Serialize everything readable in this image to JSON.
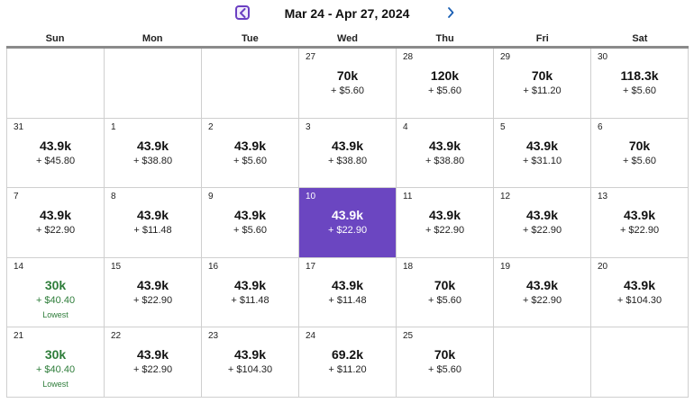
{
  "nav": {
    "title": "Mar 24 - Apr 27, 2024",
    "prev_icon": "chevron-left-icon",
    "next_icon": "chevron-right-icon"
  },
  "colors": {
    "accent": "#6b46c1",
    "lowest": "#2e7d3a"
  },
  "weekdays": [
    "Sun",
    "Mon",
    "Tue",
    "Wed",
    "Thu",
    "Fri",
    "Sat"
  ],
  "weeks": [
    [
      null,
      null,
      null,
      {
        "day": "27",
        "points": "70k",
        "taxes": "+ $5.60"
      },
      {
        "day": "28",
        "points": "120k",
        "taxes": "+ $5.60"
      },
      {
        "day": "29",
        "points": "70k",
        "taxes": "+ $11.20"
      },
      {
        "day": "30",
        "points": "118.3k",
        "taxes": "+ $5.60"
      }
    ],
    [
      {
        "day": "31",
        "points": "43.9k",
        "taxes": "+ $45.80"
      },
      {
        "day": "1",
        "points": "43.9k",
        "taxes": "+ $38.80"
      },
      {
        "day": "2",
        "points": "43.9k",
        "taxes": "+ $5.60"
      },
      {
        "day": "3",
        "points": "43.9k",
        "taxes": "+ $38.80"
      },
      {
        "day": "4",
        "points": "43.9k",
        "taxes": "+ $38.80"
      },
      {
        "day": "5",
        "points": "43.9k",
        "taxes": "+ $31.10"
      },
      {
        "day": "6",
        "points": "70k",
        "taxes": "+ $5.60"
      }
    ],
    [
      {
        "day": "7",
        "points": "43.9k",
        "taxes": "+ $22.90"
      },
      {
        "day": "8",
        "points": "43.9k",
        "taxes": "+ $11.48"
      },
      {
        "day": "9",
        "points": "43.9k",
        "taxes": "+ $5.60"
      },
      {
        "day": "10",
        "points": "43.9k",
        "taxes": "+ $22.90",
        "selected": true
      },
      {
        "day": "11",
        "points": "43.9k",
        "taxes": "+ $22.90"
      },
      {
        "day": "12",
        "points": "43.9k",
        "taxes": "+ $22.90"
      },
      {
        "day": "13",
        "points": "43.9k",
        "taxes": "+ $22.90"
      }
    ],
    [
      {
        "day": "14",
        "points": "30k",
        "taxes": "+ $40.40",
        "flag": "Lowest"
      },
      {
        "day": "15",
        "points": "43.9k",
        "taxes": "+ $22.90"
      },
      {
        "day": "16",
        "points": "43.9k",
        "taxes": "+ $11.48"
      },
      {
        "day": "17",
        "points": "43.9k",
        "taxes": "+ $11.48"
      },
      {
        "day": "18",
        "points": "70k",
        "taxes": "+ $5.60"
      },
      {
        "day": "19",
        "points": "43.9k",
        "taxes": "+ $22.90"
      },
      {
        "day": "20",
        "points": "43.9k",
        "taxes": "+ $104.30"
      }
    ],
    [
      {
        "day": "21",
        "points": "30k",
        "taxes": "+ $40.40",
        "flag": "Lowest"
      },
      {
        "day": "22",
        "points": "43.9k",
        "taxes": "+ $22.90"
      },
      {
        "day": "23",
        "points": "43.9k",
        "taxes": "+ $104.30"
      },
      {
        "day": "24",
        "points": "69.2k",
        "taxes": "+ $11.20"
      },
      {
        "day": "25",
        "points": "70k",
        "taxes": "+ $5.60"
      },
      null,
      null
    ]
  ]
}
